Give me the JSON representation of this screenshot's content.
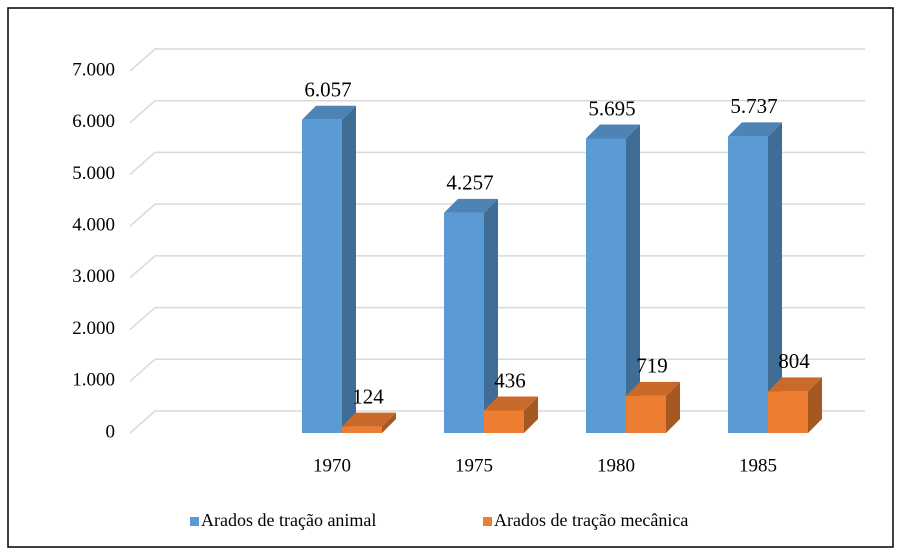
{
  "chart_data": {
    "type": "bar3d",
    "categories": [
      null,
      "1970",
      "1975",
      "1980",
      "1985"
    ],
    "series": [
      {
        "name": "Arados de tração animal",
        "color": "#5b9bd5",
        "values": [
          null,
          6057,
          4257,
          5695,
          5737
        ],
        "value_labels": [
          null,
          "6.057",
          "4.257",
          "5.695",
          "5.737"
        ]
      },
      {
        "name": "Arados de tração mecânica",
        "color": "#ed7d31",
        "values": [
          null,
          124,
          436,
          719,
          804
        ],
        "value_labels": [
          null,
          "124",
          "436",
          "719",
          "804"
        ]
      }
    ],
    "ylim": [
      0,
      7000
    ],
    "yticks": [
      {
        "value": 0,
        "label": "0"
      },
      {
        "value": 1000,
        "label": "1.000"
      },
      {
        "value": 2000,
        "label": "2.000"
      },
      {
        "value": 3000,
        "label": "3.000"
      },
      {
        "value": 4000,
        "label": "4.000"
      },
      {
        "value": 5000,
        "label": "5.000"
      },
      {
        "value": 6000,
        "label": "6.000"
      },
      {
        "value": 7000,
        "label": "7.000"
      }
    ],
    "grid": true,
    "legend": "bottom"
  }
}
